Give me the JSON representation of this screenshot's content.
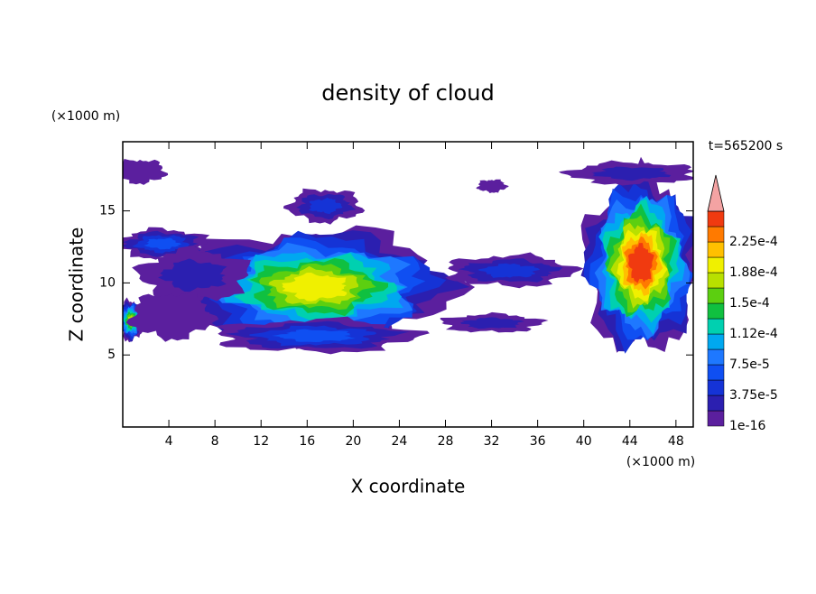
{
  "chart_data": {
    "type": "contour",
    "title": "density of cloud",
    "x_label": "X coordinate",
    "y_label": "Z coordinate",
    "x_unit": "(×1000 m)",
    "y_unit": "(×1000 m)",
    "time_label": "t=565200 s",
    "xlim": [
      0,
      49.5
    ],
    "ylim": [
      0,
      19.8
    ],
    "xticks": [
      4,
      8,
      12,
      16,
      20,
      24,
      28,
      32,
      36,
      40,
      44,
      48
    ],
    "yticks": [
      5,
      10,
      15
    ],
    "levels": [
      1e-16,
      1.875e-05,
      3.75e-05,
      5.625e-05,
      7.5e-05,
      9.375e-05,
      0.0001125,
      0.00013125,
      0.00015,
      0.00016875,
      0.0001875,
      0.00020625,
      0.000225,
      0.00024375
    ],
    "colors": [
      "#5b1f9e",
      "#2b1fb0",
      "#1533d6",
      "#0f4ff2",
      "#1e78ff",
      "#00a8f0",
      "#00d0b0",
      "#10c040",
      "#5ccf10",
      "#b8e000",
      "#f0f000",
      "#ffc000",
      "#ff7a00",
      "#f03a10"
    ],
    "over_color": "#f4a3a3",
    "cticks": [
      1e-16,
      {
        "value": 3.75e-05,
        "label": "3.75e-5"
      },
      {
        "value": 7.5e-05,
        "label": "7.5e-5"
      },
      {
        "value": 0.0001125,
        "label": "1.12e-4"
      },
      {
        "value": 0.00015,
        "label": "1.5e-4"
      },
      {
        "value": 0.0001875,
        "label": "1.88e-4"
      },
      {
        "value": 0.000225,
        "label": "2.25e-4"
      }
    ]
  }
}
